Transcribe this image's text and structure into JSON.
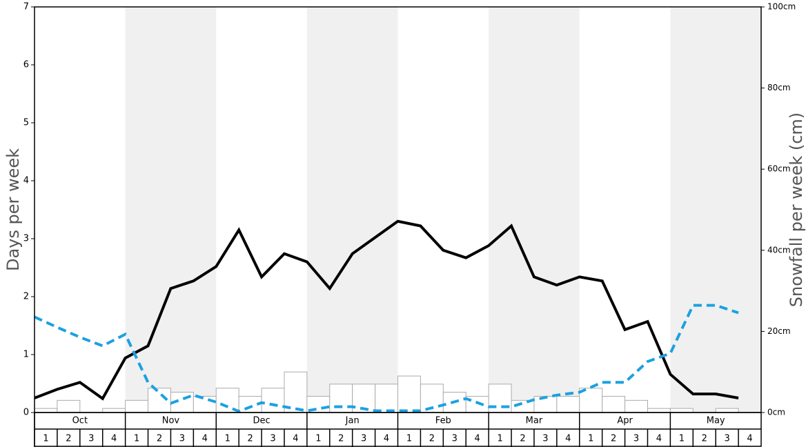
{
  "chart_data": {
    "type": "bar",
    "y_label": "Days per week",
    "y2_label": "Snowfall per week (cm)",
    "months": [
      "Oct",
      "Nov",
      "Dec",
      "Jan",
      "Feb",
      "Mar",
      "Apr",
      "May"
    ],
    "weeks": [
      "1",
      "2",
      "3",
      "4"
    ],
    "ylim": [
      0,
      7
    ],
    "yticks": [
      0,
      1,
      2,
      3,
      4,
      5,
      6,
      7
    ],
    "y2lim": [
      0,
      100
    ],
    "y2ticks": [
      {
        "value": 0,
        "label": "0cm"
      },
      {
        "value": 20,
        "label": "20cm"
      },
      {
        "value": 40,
        "label": "40cm"
      },
      {
        "value": 60,
        "label": "60cm"
      },
      {
        "value": 80,
        "label": "80cm"
      },
      {
        "value": 100,
        "label": "100cm"
      }
    ],
    "shaded_months": [
      "Nov",
      "Jan",
      "Mar",
      "May"
    ],
    "series": [
      {
        "type": "bar",
        "axis": "y2",
        "color": "#ffffff",
        "edge_color": "#aaaaaa",
        "values": [
          1,
          3,
          0,
          1,
          3,
          6,
          5,
          4,
          6,
          4,
          6,
          10,
          4,
          7,
          7,
          7,
          9,
          7,
          5,
          4,
          7,
          3,
          4,
          4,
          6,
          4,
          3,
          1,
          1,
          0,
          1,
          0
        ]
      },
      {
        "type": "line",
        "color": "#000000",
        "dashed": false,
        "values": [
          0.25,
          0.4,
          0.52,
          0.24,
          0.94,
          1.15,
          2.14,
          2.27,
          2.52,
          3.15,
          2.34,
          2.74,
          2.6,
          2.14,
          2.74,
          3.02,
          3.3,
          3.22,
          2.8,
          2.67,
          2.88,
          3.22,
          2.34,
          2.2,
          2.34,
          2.27,
          1.43,
          1.57,
          0.66,
          0.32,
          0.32,
          0.25
        ]
      },
      {
        "type": "line",
        "color": "#1ba1e2",
        "dashed": true,
        "values": [
          1.65,
          1.47,
          1.3,
          1.15,
          1.35,
          0.52,
          0.16,
          0.3,
          0.18,
          0.02,
          0.17,
          0.1,
          0.03,
          0.1,
          0.1,
          0.03,
          0.03,
          0.03,
          0.13,
          0.24,
          0.1,
          0.1,
          0.22,
          0.3,
          0.35,
          0.52,
          0.52,
          0.88,
          1.02,
          1.85,
          1.85,
          1.72
        ]
      }
    ]
  }
}
